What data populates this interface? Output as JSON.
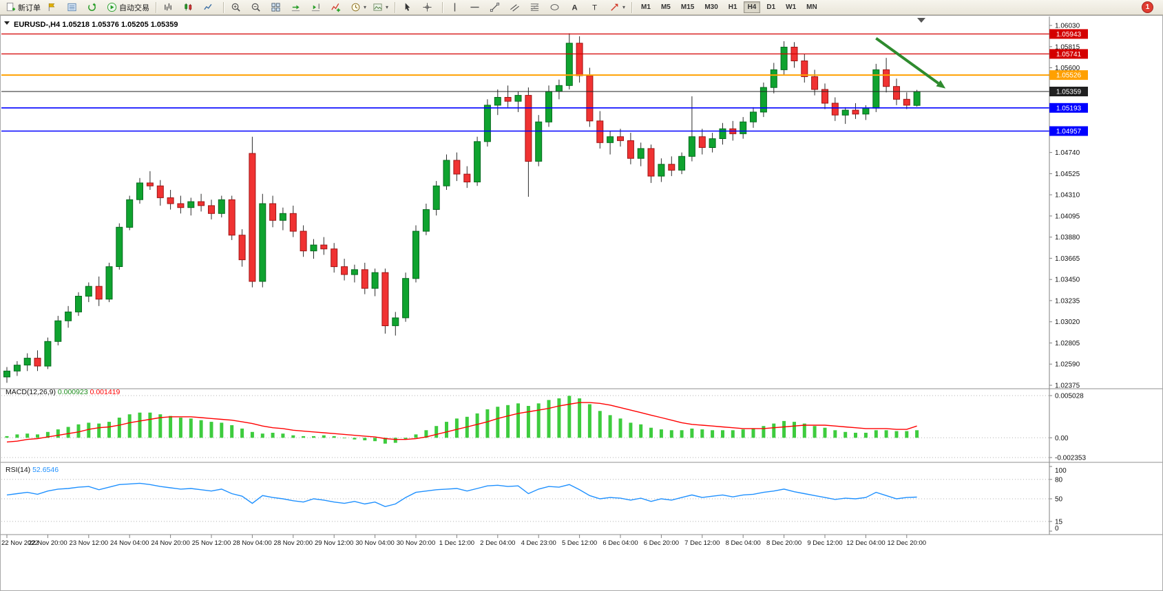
{
  "toolbar": {
    "groups": [
      {
        "name": "trade",
        "items": [
          {
            "name": "new-order-button",
            "icon": "doc-plus",
            "label": "新订单"
          },
          {
            "name": "profile-button",
            "icon": "flag"
          },
          {
            "name": "market-watch-button",
            "icon": "list"
          },
          {
            "name": "refresh-button",
            "icon": "refresh"
          },
          {
            "name": "autotrade-button",
            "icon": "play",
            "label": "自动交易"
          }
        ]
      },
      {
        "name": "chart-types",
        "items": [
          {
            "name": "bar-chart-button",
            "icon": "bars"
          },
          {
            "name": "candlestick-chart-button",
            "icon": "candles"
          },
          {
            "name": "line-chart-button",
            "icon": "linechart"
          }
        ]
      },
      {
        "name": "chart-controls",
        "items": [
          {
            "name": "zoom-in-button",
            "icon": "zoom-in"
          },
          {
            "name": "zoom-out-button",
            "icon": "zoom-out"
          },
          {
            "name": "tile-windows-button",
            "icon": "tile"
          },
          {
            "name": "auto-scroll-button",
            "icon": "autoscroll"
          },
          {
            "name": "chart-shift-button",
            "icon": "chartshift"
          },
          {
            "name": "indicators-button",
            "icon": "indicator"
          },
          {
            "name": "periods-button",
            "icon": "clock",
            "dropdown": true
          },
          {
            "name": "templates-button",
            "icon": "template",
            "dropdown": true
          }
        ]
      },
      {
        "name": "cursor-tools",
        "items": [
          {
            "name": "cursor-button",
            "icon": "cursor"
          },
          {
            "name": "crosshair-button",
            "icon": "crosshair"
          }
        ]
      },
      {
        "name": "draw-tools",
        "items": [
          {
            "name": "vertical-line-button",
            "icon": "vline"
          },
          {
            "name": "horizontal-line-button",
            "icon": "hline"
          },
          {
            "name": "trendline-button",
            "icon": "trend"
          },
          {
            "name": "channel-button",
            "icon": "channel"
          },
          {
            "name": "fibonacci-button",
            "icon": "fib"
          },
          {
            "name": "shapes-button",
            "icon": "shapes"
          },
          {
            "name": "text-button",
            "icon": "textA"
          },
          {
            "name": "text-label-button",
            "icon": "labelT"
          },
          {
            "name": "arrows-button",
            "icon": "arrowtool",
            "dropdown": true
          }
        ]
      },
      {
        "name": "timeframes",
        "items": [
          {
            "name": "timeframe-m1",
            "label": "M1"
          },
          {
            "name": "timeframe-m5",
            "label": "M5"
          },
          {
            "name": "timeframe-m15",
            "label": "M15"
          },
          {
            "name": "timeframe-m30",
            "label": "M30"
          },
          {
            "name": "timeframe-h1",
            "label": "H1"
          },
          {
            "name": "timeframe-h4",
            "label": "H4",
            "active": true
          },
          {
            "name": "timeframe-d1",
            "label": "D1"
          },
          {
            "name": "timeframe-w1",
            "label": "W1"
          },
          {
            "name": "timeframe-mn",
            "label": "MN"
          }
        ]
      }
    ],
    "notification_badge": "1"
  },
  "colors": {
    "bull": "#0FA32F",
    "bull_stroke": "#066A1E",
    "bear": "#F03232",
    "bear_stroke": "#9E1414",
    "wick": "#2b2b2b",
    "macd_hist": "#3ECC3E",
    "macd_value": "#1c8c1c",
    "macd_signal": "#FF0000",
    "rsi": "#1E90FF",
    "resistance": "#D40000",
    "pivot": "#FFA000",
    "price_line": "#202020",
    "support": "#0000FF",
    "arrow": "#2E8B2E"
  },
  "chart_data": [
    {
      "type": "candlestick",
      "symbol": "EURUSD-,H4",
      "open": "1.05218",
      "high": "1.05376",
      "low": "1.05205",
      "close": "1.05359",
      "ylim": [
        1.02375,
        1.0603
      ],
      "y_ticks": [
        1.0603,
        1.05815,
        1.056,
        1.05385,
        1.0517,
        1.04955,
        1.0474,
        1.04525,
        1.0431,
        1.04095,
        1.0388,
        1.03665,
        1.0345,
        1.03235,
        1.0302,
        1.02805,
        1.0259,
        1.02375
      ],
      "x_label_step": 4,
      "x_labels": [
        "22 Nov 2022",
        "22 Nov 20:00",
        "23 Nov 12:00",
        "24 Nov 04:00",
        "24 Nov 20:00",
        "25 Nov 12:00",
        "28 Nov 04:00",
        "28 Nov 20:00",
        "29 Nov 12:00",
        "30 Nov 04:00",
        "30 Nov 20:00",
        "1 Dec 12:00",
        "2 Dec 04:00",
        "4 Dec 23:00",
        "5 Dec 12:00",
        "6 Dec 04:00",
        "6 Dec 20:00",
        "7 Dec 12:00",
        "8 Dec 04:00",
        "8 Dec 20:00",
        "9 Dec 12:00",
        "12 Dec 04:00",
        "12 Dec 20:00"
      ],
      "ohlc": [
        [
          1.0246,
          1.0256,
          1.024,
          1.0252
        ],
        [
          1.0252,
          1.0262,
          1.0247,
          1.0258
        ],
        [
          1.0258,
          1.027,
          1.0252,
          1.0265
        ],
        [
          1.0265,
          1.0273,
          1.0252,
          1.0257
        ],
        [
          1.0257,
          1.0286,
          1.0254,
          1.0282
        ],
        [
          1.0282,
          1.0308,
          1.0278,
          1.0303
        ],
        [
          1.0303,
          1.0318,
          1.0296,
          1.0312
        ],
        [
          1.0312,
          1.0332,
          1.0308,
          1.0328
        ],
        [
          1.0328,
          1.0342,
          1.0322,
          1.0338
        ],
        [
          1.0338,
          1.0348,
          1.0318,
          1.0325
        ],
        [
          1.0325,
          1.0362,
          1.0322,
          1.0358
        ],
        [
          1.0358,
          1.0402,
          1.0355,
          1.0398
        ],
        [
          1.0398,
          1.043,
          1.0395,
          1.0426
        ],
        [
          1.0426,
          1.0448,
          1.0422,
          1.0443
        ],
        [
          1.0443,
          1.0455,
          1.0436,
          1.044
        ],
        [
          1.044,
          1.0446,
          1.042,
          1.0428
        ],
        [
          1.0428,
          1.0436,
          1.0416,
          1.0422
        ],
        [
          1.0422,
          1.043,
          1.0412,
          1.0418
        ],
        [
          1.0418,
          1.0428,
          1.041,
          1.0424
        ],
        [
          1.0424,
          1.0432,
          1.0414,
          1.042
        ],
        [
          1.042,
          1.0426,
          1.0406,
          1.0412
        ],
        [
          1.0412,
          1.043,
          1.0408,
          1.0426
        ],
        [
          1.0426,
          1.043,
          1.0385,
          1.039
        ],
        [
          1.039,
          1.0396,
          1.0358,
          1.0365
        ],
        [
          1.0473,
          1.049,
          1.0337,
          1.0343
        ],
        [
          1.0343,
          1.0432,
          1.0337,
          1.0422
        ],
        [
          1.0422,
          1.043,
          1.0398,
          1.0405
        ],
        [
          1.0405,
          1.0418,
          1.0395,
          1.0412
        ],
        [
          1.0412,
          1.042,
          1.0388,
          1.0394
        ],
        [
          1.0394,
          1.04,
          1.0368,
          1.0374
        ],
        [
          1.0374,
          1.0386,
          1.0366,
          1.038
        ],
        [
          1.038,
          1.0388,
          1.037,
          1.0376
        ],
        [
          1.0376,
          1.0382,
          1.0352,
          1.0358
        ],
        [
          1.0358,
          1.0366,
          1.0344,
          1.035
        ],
        [
          1.035,
          1.036,
          1.0342,
          1.0355
        ],
        [
          1.0355,
          1.0362,
          1.033,
          1.0336
        ],
        [
          1.0336,
          1.0356,
          1.0328,
          1.0352
        ],
        [
          1.0352,
          1.0356,
          1.029,
          1.0298
        ],
        [
          1.0298,
          1.0312,
          1.0288,
          1.0306
        ],
        [
          1.0306,
          1.0352,
          1.0302,
          1.0346
        ],
        [
          1.0346,
          1.04,
          1.0342,
          1.0394
        ],
        [
          1.0394,
          1.0422,
          1.039,
          1.0416
        ],
        [
          1.0416,
          1.0445,
          1.041,
          1.044
        ],
        [
          1.044,
          1.0472,
          1.0436,
          1.0466
        ],
        [
          1.0466,
          1.0474,
          1.0445,
          1.0452
        ],
        [
          1.0452,
          1.046,
          1.0438,
          1.0444
        ],
        [
          1.0444,
          1.049,
          1.044,
          1.0485
        ],
        [
          1.0485,
          1.0528,
          1.048,
          1.0522
        ],
        [
          1.0522,
          1.0538,
          1.0512,
          1.053
        ],
        [
          1.053,
          1.0542,
          1.052,
          1.0526
        ],
        [
          1.0526,
          1.0536,
          1.0515,
          1.0532
        ],
        [
          1.0532,
          1.054,
          1.0429,
          1.0465
        ],
        [
          1.0465,
          1.0512,
          1.046,
          1.0505
        ],
        [
          1.0505,
          1.0542,
          1.05,
          1.0536
        ],
        [
          1.0536,
          1.0548,
          1.0528,
          1.0542
        ],
        [
          1.0542,
          1.0595,
          1.0538,
          1.0585
        ],
        [
          1.0585,
          1.0592,
          1.0545,
          1.0552
        ],
        [
          1.0552,
          1.056,
          1.05,
          1.0506
        ],
        [
          1.0506,
          1.0516,
          1.0478,
          1.0484
        ],
        [
          1.0484,
          1.0496,
          1.0472,
          1.049
        ],
        [
          1.049,
          1.0498,
          1.048,
          1.0486
        ],
        [
          1.0486,
          1.0494,
          1.0462,
          1.0468
        ],
        [
          1.0468,
          1.0484,
          1.046,
          1.0478
        ],
        [
          1.0478,
          1.0482,
          1.0443,
          1.045
        ],
        [
          1.045,
          1.0468,
          1.0444,
          1.0462
        ],
        [
          1.0462,
          1.047,
          1.045,
          1.0456
        ],
        [
          1.0456,
          1.0474,
          1.0452,
          1.047
        ],
        [
          1.047,
          1.0531,
          1.0465,
          1.049
        ],
        [
          1.049,
          1.0498,
          1.0472,
          1.0479
        ],
        [
          1.0479,
          1.0494,
          1.0474,
          1.0488
        ],
        [
          1.0488,
          1.0504,
          1.0482,
          1.0498
        ],
        [
          1.0498,
          1.0506,
          1.0486,
          1.0493
        ],
        [
          1.0493,
          1.051,
          1.0488,
          1.0505
        ],
        [
          1.0505,
          1.052,
          1.0499,
          1.0515
        ],
        [
          1.0515,
          1.0545,
          1.051,
          1.054
        ],
        [
          1.054,
          1.0565,
          1.0534,
          1.0558
        ],
        [
          1.0558,
          1.0587,
          1.0552,
          1.0581
        ],
        [
          1.0581,
          1.0586,
          1.056,
          1.0567
        ],
        [
          1.0567,
          1.0574,
          1.0545,
          1.0551
        ],
        [
          1.0551,
          1.0558,
          1.0532,
          1.0538
        ],
        [
          1.0538,
          1.0544,
          1.0518,
          1.0524
        ],
        [
          1.0524,
          1.053,
          1.0506,
          1.0512
        ],
        [
          1.0512,
          1.052,
          1.0503,
          1.0517
        ],
        [
          1.0517,
          1.0524,
          1.0508,
          1.0513
        ],
        [
          1.0513,
          1.0522,
          1.0507,
          1.0519
        ],
        [
          1.0519,
          1.0564,
          1.0515,
          1.0558
        ],
        [
          1.0558,
          1.057,
          1.0535,
          1.0541
        ],
        [
          1.0541,
          1.0549,
          1.0522,
          1.0528
        ],
        [
          1.0528,
          1.0535,
          1.0518,
          1.0522
        ],
        [
          1.05218,
          1.05376,
          1.05205,
          1.05359
        ]
      ],
      "hlines": [
        {
          "price": 1.05943,
          "label": "1.05943",
          "color": "#D40000",
          "width": 1.3
        },
        {
          "price": 1.05741,
          "label": "1.05741",
          "color": "#D40000",
          "width": 1.3
        },
        {
          "price": 1.05526,
          "label": "1.05526",
          "color": "#FFA000",
          "width": 2
        },
        {
          "price": 1.05359,
          "label": "1.05359",
          "color": "#202020",
          "width": 1
        },
        {
          "price": 1.05193,
          "label": "1.05193",
          "color": "#0000FF",
          "width": 1.6
        },
        {
          "price": 1.04957,
          "label": "1.04957",
          "color": "#0000FF",
          "width": 1.6
        }
      ],
      "arrow": {
        "from_candle": 85,
        "from_price": 1.059,
        "to_candle": 91.8,
        "to_price": 1.0539,
        "color": "#2E8B2E"
      }
    },
    {
      "type": "macd",
      "name": "MACD(12,26,9)",
      "value_main": "0.000923",
      "value_signal": "0.001419",
      "ylim": [
        -0.002353,
        0.005028
      ],
      "y_ticks": [
        {
          "v": 0.005028,
          "label": "0.005028"
        },
        {
          "v": 0,
          "label": "0.00"
        },
        {
          "v": -0.002353,
          "label": "-0.002353"
        }
      ],
      "histogram": [
        0.0002,
        0.0004,
        0.0005,
        0.0004,
        0.0007,
        0.001,
        0.0013,
        0.0016,
        0.0018,
        0.0017,
        0.0019,
        0.0024,
        0.0028,
        0.003,
        0.003,
        0.0028,
        0.0026,
        0.0024,
        0.0023,
        0.0021,
        0.0019,
        0.0018,
        0.0015,
        0.0011,
        0.0007,
        0.0005,
        0.0006,
        0.0005,
        0.0003,
        0.0002,
        0.0002,
        0.0003,
        0.0002,
        0.0,
        -0.0002,
        -0.0003,
        -0.0004,
        -0.0007,
        -0.0006,
        -0.0002,
        0.0004,
        0.0009,
        0.0014,
        0.0019,
        0.0023,
        0.0025,
        0.0029,
        0.0034,
        0.0037,
        0.0039,
        0.0041,
        0.0038,
        0.0041,
        0.0045,
        0.0047,
        0.005,
        0.0047,
        0.004,
        0.0032,
        0.0027,
        0.0023,
        0.0018,
        0.0016,
        0.0012,
        0.001,
        0.0009,
        0.0009,
        0.0011,
        0.001,
        0.0009,
        0.0009,
        0.0009,
        0.001,
        0.0011,
        0.0014,
        0.0017,
        0.002,
        0.0019,
        0.0017,
        0.0014,
        0.0012,
        0.0009,
        0.0007,
        0.0006,
        0.0006,
        0.0009,
        0.0009,
        0.0008,
        0.0008,
        0.0009
      ],
      "signal": [
        -0.0005,
        -0.0004,
        -0.0002,
        -0.0001,
        0.0001,
        0.0003,
        0.0005,
        0.0007,
        0.001,
        0.0012,
        0.0013,
        0.0015,
        0.0018,
        0.002,
        0.0022,
        0.0024,
        0.0025,
        0.0025,
        0.0025,
        0.0024,
        0.0023,
        0.0022,
        0.0021,
        0.0019,
        0.0017,
        0.0014,
        0.0012,
        0.0011,
        0.0009,
        0.0008,
        0.0007,
        0.0006,
        0.0005,
        0.0004,
        0.0003,
        0.0002,
        0.0001,
        -0.0001,
        -0.0002,
        -0.0002,
        -0.0001,
        0.0001,
        0.0004,
        0.0007,
        0.001,
        0.0013,
        0.0016,
        0.0019,
        0.0023,
        0.0026,
        0.0029,
        0.0031,
        0.0033,
        0.0035,
        0.0038,
        0.004,
        0.0042,
        0.0042,
        0.0041,
        0.0039,
        0.0036,
        0.0033,
        0.003,
        0.0027,
        0.0024,
        0.0021,
        0.0018,
        0.0016,
        0.0015,
        0.0014,
        0.0013,
        0.0012,
        0.0011,
        0.0011,
        0.0011,
        0.0012,
        0.0013,
        0.0014,
        0.0015,
        0.0015,
        0.0015,
        0.0014,
        0.0013,
        0.0012,
        0.0011,
        0.0011,
        0.0011,
        0.001,
        0.001,
        0.0014
      ]
    },
    {
      "type": "rsi",
      "name": "RSI(14)",
      "value": "52.6546",
      "ylim": [
        0,
        100
      ],
      "y_ticks": [
        100,
        80,
        50,
        15,
        0
      ],
      "levels": [
        80,
        50,
        15
      ],
      "values": [
        56,
        58,
        60,
        57,
        62,
        65,
        66,
        68,
        69,
        64,
        68,
        72,
        73,
        74,
        72,
        69,
        67,
        65,
        66,
        64,
        62,
        65,
        58,
        54,
        43,
        55,
        52,
        50,
        47,
        45,
        50,
        48,
        45,
        43,
        46,
        42,
        45,
        38,
        42,
        52,
        60,
        62,
        64,
        65,
        66,
        62,
        66,
        70,
        71,
        69,
        70,
        58,
        65,
        69,
        68,
        72,
        64,
        55,
        50,
        52,
        51,
        48,
        51,
        46,
        50,
        48,
        52,
        56,
        52,
        54,
        56,
        53,
        56,
        57,
        60,
        62,
        65,
        61,
        58,
        55,
        52,
        49,
        51,
        50,
        52,
        60,
        55,
        50,
        52,
        52.65
      ]
    }
  ]
}
